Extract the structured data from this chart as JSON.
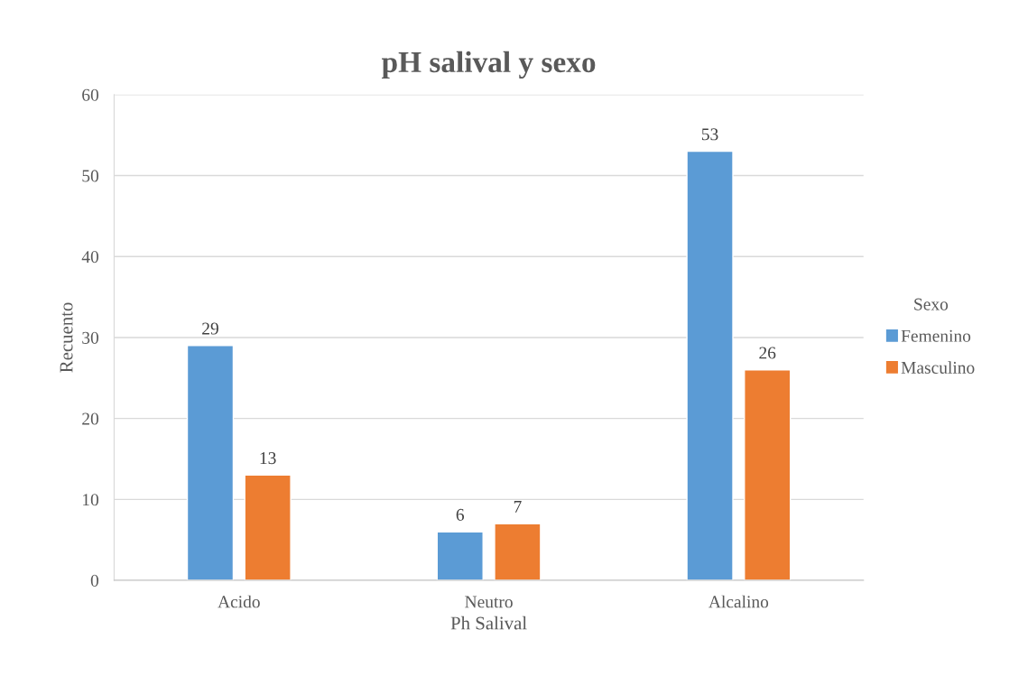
{
  "chart_data": {
    "type": "bar",
    "title": "pH salival y sexo",
    "xlabel": "Ph Salival",
    "ylabel": "Recuento",
    "legend_title": "Sexo",
    "categories": [
      "Acido",
      "Neutro",
      "Alcalino"
    ],
    "series": [
      {
        "name": "Femenino",
        "color": "#5b9bd5",
        "values": [
          29,
          6,
          53
        ]
      },
      {
        "name": "Masculino",
        "color": "#ed7d31",
        "values": [
          13,
          7,
          26
        ]
      }
    ],
    "ylim": [
      0,
      60
    ],
    "yticks": [
      0,
      10,
      20,
      30,
      40,
      50,
      60
    ],
    "grid": "y",
    "legend": "right",
    "data_labels": true
  }
}
